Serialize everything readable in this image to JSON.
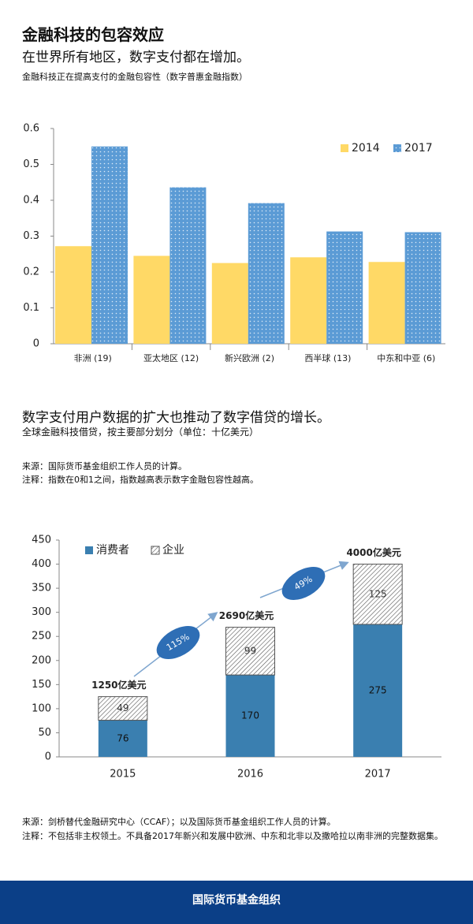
{
  "title": "金融科技的包容效应",
  "subtitle": "在世界所有地区，数字支付都在增加。",
  "footer": "国际货币基金组织",
  "chart_data": [
    {
      "type": "bar",
      "subtitle": "金融科技正在提高支付的金融包容性（数字普惠金融指数）",
      "categories": [
        "非洲 (19)",
        "亚太地区 (12)",
        "新兴欧洲 (2)",
        "西半球 (13)",
        "中东和中亚 (6)"
      ],
      "series": [
        {
          "name": "2014",
          "color": "#ffd966",
          "pattern": "none",
          "values": [
            0.272,
            0.245,
            0.225,
            0.241,
            0.228
          ]
        },
        {
          "name": "2017",
          "color": "#5b9bd5",
          "pattern": "dots",
          "values": [
            0.55,
            0.436,
            0.392,
            0.313,
            0.311
          ]
        }
      ],
      "ylim": [
        0,
        0.6
      ],
      "yticks": [
        0,
        0.1,
        0.2,
        0.3,
        0.4,
        0.5,
        0.6
      ],
      "grid": false,
      "legend": "upper-right",
      "notes": [
        "来源：国际货币基金组织工作人员的计算。",
        "注释：指数在0和1之间，指数越高表示数字金融包容性越高。"
      ]
    },
    {
      "type": "stacked_bar",
      "title": "数字支付用户数据的扩大也推动了数字借贷的增长。",
      "subtitle": "全球金融科技借贷，按主要部分划分（单位：十亿美元）",
      "categories": [
        "2015",
        "2016",
        "2017"
      ],
      "series": [
        {
          "name": "消费者",
          "color": "#3a7fb0",
          "pattern": "none",
          "values": [
            76,
            170,
            275
          ]
        },
        {
          "name": "企业",
          "color": "#ffffff",
          "pattern": "hatch",
          "values": [
            49,
            99,
            125
          ]
        }
      ],
      "total_labels": [
        "1250亿美元",
        "2690亿美元",
        "4000亿美元"
      ],
      "growth_labels": [
        "115%",
        "49%"
      ],
      "ylim": [
        0,
        450
      ],
      "yticks": [
        0,
        50,
        100,
        150,
        200,
        250,
        300,
        350,
        400,
        450
      ],
      "grid": false,
      "legend": "upper-left",
      "notes": [
        "来源：剑桥替代金融研究中心（CCAF）；以及国际货币基金组织工作人员的计算。",
        "注释：不包括非主权领土。不具备2017年新兴和发展中欧洲、中东和北非以及撒哈拉以南非洲的完整数据集。"
      ]
    }
  ]
}
